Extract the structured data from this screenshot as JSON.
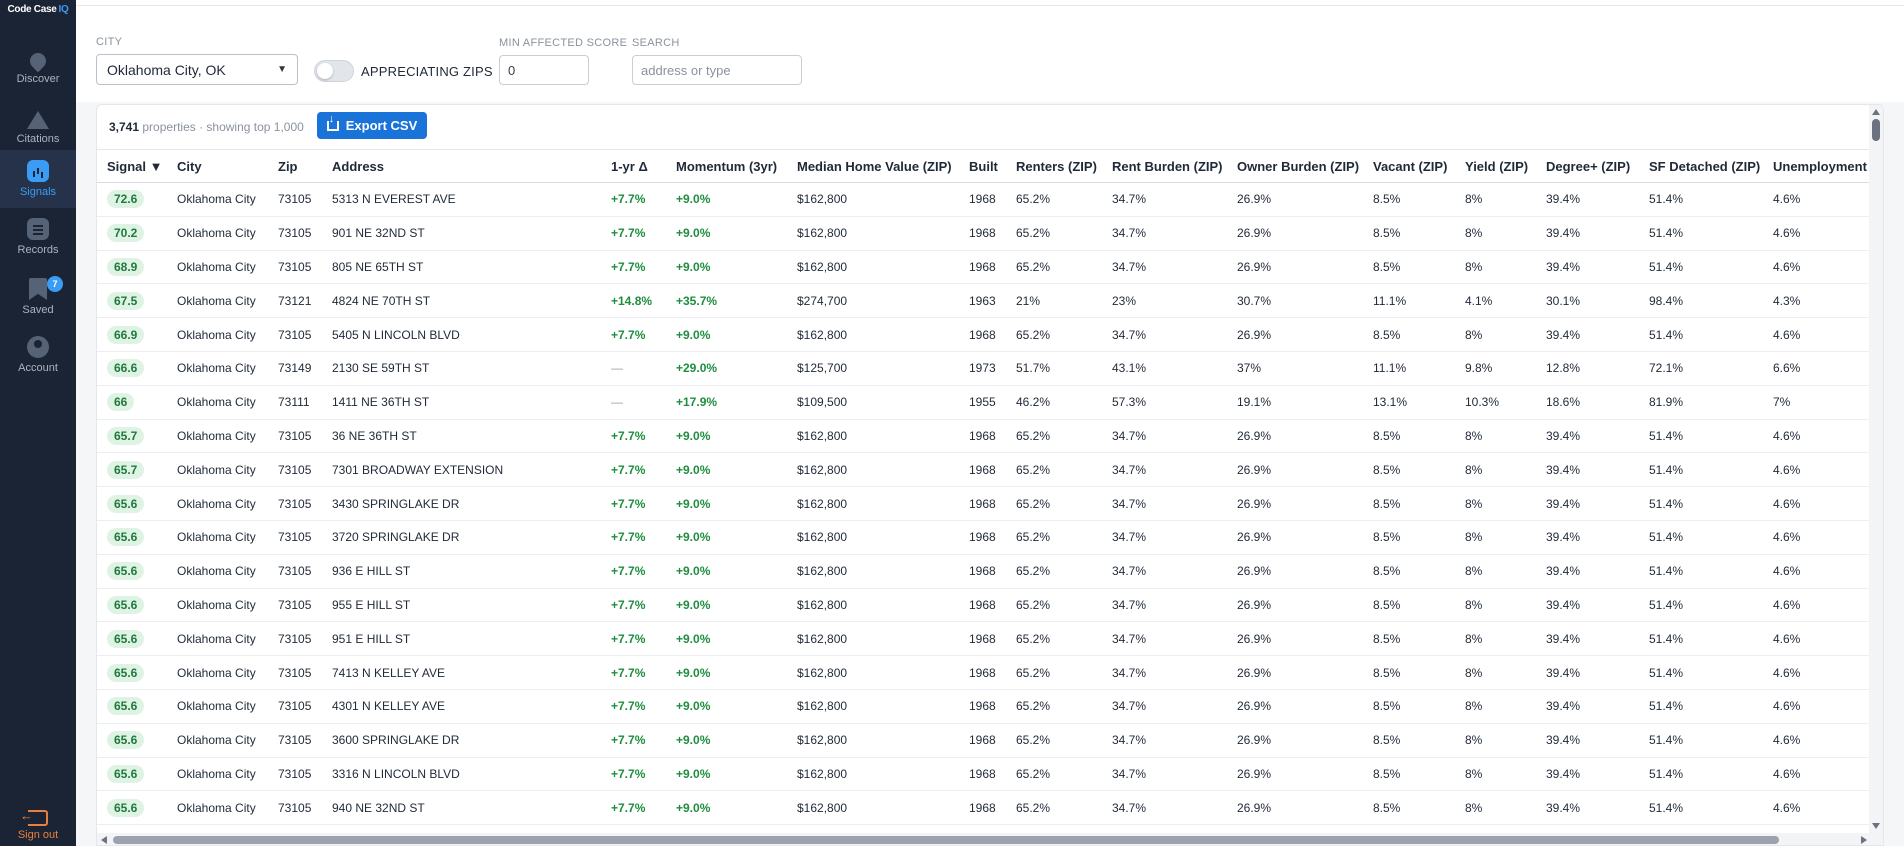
{
  "app": {
    "logo_text": "Code Case",
    "logo_accent": "IQ"
  },
  "sidebar": {
    "items": [
      {
        "label": "Discover",
        "icon": "map-pin-icon"
      },
      {
        "label": "Citations",
        "icon": "warning-icon"
      },
      {
        "label": "Signals",
        "icon": "bar-chart-icon",
        "active": true
      },
      {
        "label": "Records",
        "icon": "document-icon"
      },
      {
        "label": "Saved",
        "icon": "bookmark-icon",
        "badge": "7"
      },
      {
        "label": "Account",
        "icon": "user-icon"
      }
    ],
    "signout_label": "Sign out"
  },
  "filters": {
    "city_label": "CITY",
    "city_value": "Oklahoma City, OK",
    "appreciating_label": "APPRECIATING ZIPS",
    "appreciating_on": false,
    "min_score_label": "MIN AFFECTED SCORE",
    "min_score_value": "0",
    "search_label": "SEARCH",
    "search_placeholder": "address or type"
  },
  "summary": {
    "count": "3,741",
    "count_suffix": "properties · showing top 1,000",
    "export_label": "Export CSV"
  },
  "table": {
    "columns": [
      "Signal ▼",
      "City",
      "Zip",
      "Address",
      "1-yr Δ",
      "Momentum (3yr)",
      "Median Home Value (ZIP)",
      "Built",
      "Renters (ZIP)",
      "Rent Burden (ZIP)",
      "Owner Burden (ZIP)",
      "Vacant (ZIP)",
      "Yield (ZIP)",
      "Degree+ (ZIP)",
      "SF Detached (ZIP)",
      "Unemployment (ZIP)"
    ],
    "rows": [
      [
        "72.6",
        "Oklahoma City",
        "73105",
        "5313 N EVEREST AVE",
        "+7.7%",
        "+9.0%",
        "$162,800",
        "1968",
        "65.2%",
        "34.7%",
        "26.9%",
        "8.5%",
        "8%",
        "39.4%",
        "51.4%",
        "4.6%"
      ],
      [
        "70.2",
        "Oklahoma City",
        "73105",
        "901 NE 32ND ST",
        "+7.7%",
        "+9.0%",
        "$162,800",
        "1968",
        "65.2%",
        "34.7%",
        "26.9%",
        "8.5%",
        "8%",
        "39.4%",
        "51.4%",
        "4.6%"
      ],
      [
        "68.9",
        "Oklahoma City",
        "73105",
        "805 NE 65TH ST",
        "+7.7%",
        "+9.0%",
        "$162,800",
        "1968",
        "65.2%",
        "34.7%",
        "26.9%",
        "8.5%",
        "8%",
        "39.4%",
        "51.4%",
        "4.6%"
      ],
      [
        "67.5",
        "Oklahoma City",
        "73121",
        "4824 NE 70TH ST",
        "+14.8%",
        "+35.7%",
        "$274,700",
        "1963",
        "21%",
        "23%",
        "30.7%",
        "11.1%",
        "4.1%",
        "30.1%",
        "98.4%",
        "4.3%"
      ],
      [
        "66.9",
        "Oklahoma City",
        "73105",
        "5405 N LINCOLN BLVD",
        "+7.7%",
        "+9.0%",
        "$162,800",
        "1968",
        "65.2%",
        "34.7%",
        "26.9%",
        "8.5%",
        "8%",
        "39.4%",
        "51.4%",
        "4.6%"
      ],
      [
        "66.6",
        "Oklahoma City",
        "73149",
        "2130 SE 59TH ST",
        "—",
        "+29.0%",
        "$125,700",
        "1973",
        "51.7%",
        "43.1%",
        "37%",
        "11.1%",
        "9.8%",
        "12.8%",
        "72.1%",
        "6.6%"
      ],
      [
        "66",
        "Oklahoma City",
        "73111",
        "1411 NE 36TH ST",
        "—",
        "+17.9%",
        "$109,500",
        "1955",
        "46.2%",
        "57.3%",
        "19.1%",
        "13.1%",
        "10.3%",
        "18.6%",
        "81.9%",
        "7%"
      ],
      [
        "65.7",
        "Oklahoma City",
        "73105",
        "36 NE 36TH ST",
        "+7.7%",
        "+9.0%",
        "$162,800",
        "1968",
        "65.2%",
        "34.7%",
        "26.9%",
        "8.5%",
        "8%",
        "39.4%",
        "51.4%",
        "4.6%"
      ],
      [
        "65.7",
        "Oklahoma City",
        "73105",
        "7301 BROADWAY EXTENSION",
        "+7.7%",
        "+9.0%",
        "$162,800",
        "1968",
        "65.2%",
        "34.7%",
        "26.9%",
        "8.5%",
        "8%",
        "39.4%",
        "51.4%",
        "4.6%"
      ],
      [
        "65.6",
        "Oklahoma City",
        "73105",
        "3430 SPRINGLAKE DR",
        "+7.7%",
        "+9.0%",
        "$162,800",
        "1968",
        "65.2%",
        "34.7%",
        "26.9%",
        "8.5%",
        "8%",
        "39.4%",
        "51.4%",
        "4.6%"
      ],
      [
        "65.6",
        "Oklahoma City",
        "73105",
        "3720 SPRINGLAKE DR",
        "+7.7%",
        "+9.0%",
        "$162,800",
        "1968",
        "65.2%",
        "34.7%",
        "26.9%",
        "8.5%",
        "8%",
        "39.4%",
        "51.4%",
        "4.6%"
      ],
      [
        "65.6",
        "Oklahoma City",
        "73105",
        "936 E HILL ST",
        "+7.7%",
        "+9.0%",
        "$162,800",
        "1968",
        "65.2%",
        "34.7%",
        "26.9%",
        "8.5%",
        "8%",
        "39.4%",
        "51.4%",
        "4.6%"
      ],
      [
        "65.6",
        "Oklahoma City",
        "73105",
        "955 E HILL ST",
        "+7.7%",
        "+9.0%",
        "$162,800",
        "1968",
        "65.2%",
        "34.7%",
        "26.9%",
        "8.5%",
        "8%",
        "39.4%",
        "51.4%",
        "4.6%"
      ],
      [
        "65.6",
        "Oklahoma City",
        "73105",
        "951 E HILL ST",
        "+7.7%",
        "+9.0%",
        "$162,800",
        "1968",
        "65.2%",
        "34.7%",
        "26.9%",
        "8.5%",
        "8%",
        "39.4%",
        "51.4%",
        "4.6%"
      ],
      [
        "65.6",
        "Oklahoma City",
        "73105",
        "7413 N KELLEY AVE",
        "+7.7%",
        "+9.0%",
        "$162,800",
        "1968",
        "65.2%",
        "34.7%",
        "26.9%",
        "8.5%",
        "8%",
        "39.4%",
        "51.4%",
        "4.6%"
      ],
      [
        "65.6",
        "Oklahoma City",
        "73105",
        "4301 N KELLEY AVE",
        "+7.7%",
        "+9.0%",
        "$162,800",
        "1968",
        "65.2%",
        "34.7%",
        "26.9%",
        "8.5%",
        "8%",
        "39.4%",
        "51.4%",
        "4.6%"
      ],
      [
        "65.6",
        "Oklahoma City",
        "73105",
        "3600 SPRINGLAKE DR",
        "+7.7%",
        "+9.0%",
        "$162,800",
        "1968",
        "65.2%",
        "34.7%",
        "26.9%",
        "8.5%",
        "8%",
        "39.4%",
        "51.4%",
        "4.6%"
      ],
      [
        "65.6",
        "Oklahoma City",
        "73105",
        "3316 N LINCOLN BLVD",
        "+7.7%",
        "+9.0%",
        "$162,800",
        "1968",
        "65.2%",
        "34.7%",
        "26.9%",
        "8.5%",
        "8%",
        "39.4%",
        "51.4%",
        "4.6%"
      ],
      [
        "65.6",
        "Oklahoma City",
        "73105",
        "940 NE 32ND ST",
        "+7.7%",
        "+9.0%",
        "$162,800",
        "1968",
        "65.2%",
        "34.7%",
        "26.9%",
        "8.5%",
        "8%",
        "39.4%",
        "51.4%",
        "4.6%"
      ]
    ]
  },
  "colors": {
    "sidebar_bg": "#1b2434",
    "accent": "#1a73d9",
    "positive": "#1e8e3e",
    "signal_bg": "#dff3e4",
    "signout": "#e8803b"
  }
}
